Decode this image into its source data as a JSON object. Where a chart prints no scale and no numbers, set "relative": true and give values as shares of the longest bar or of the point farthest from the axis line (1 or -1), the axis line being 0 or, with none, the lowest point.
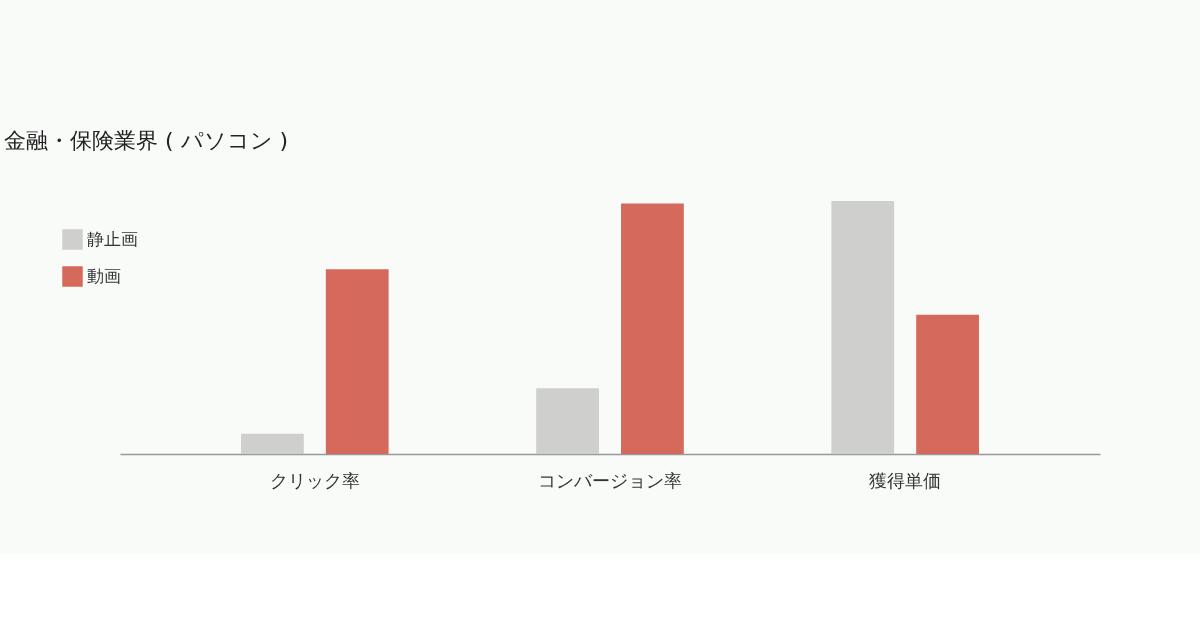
{
  "chart_data": {
    "type": "bar",
    "title": "金融・保険業界 ( パソコン )",
    "relative": true,
    "categories": [
      "クリック率",
      "コンバージョン率",
      "獲得単価"
    ],
    "series": [
      {
        "name": "静止画",
        "color": "#cfcfcd",
        "values": [
          0.08,
          0.26,
          1
        ]
      },
      {
        "name": "動画",
        "color": "#d4695c",
        "values": [
          0.73,
          0.99,
          0.55
        ]
      }
    ],
    "legend": "top left",
    "grid": false
  }
}
